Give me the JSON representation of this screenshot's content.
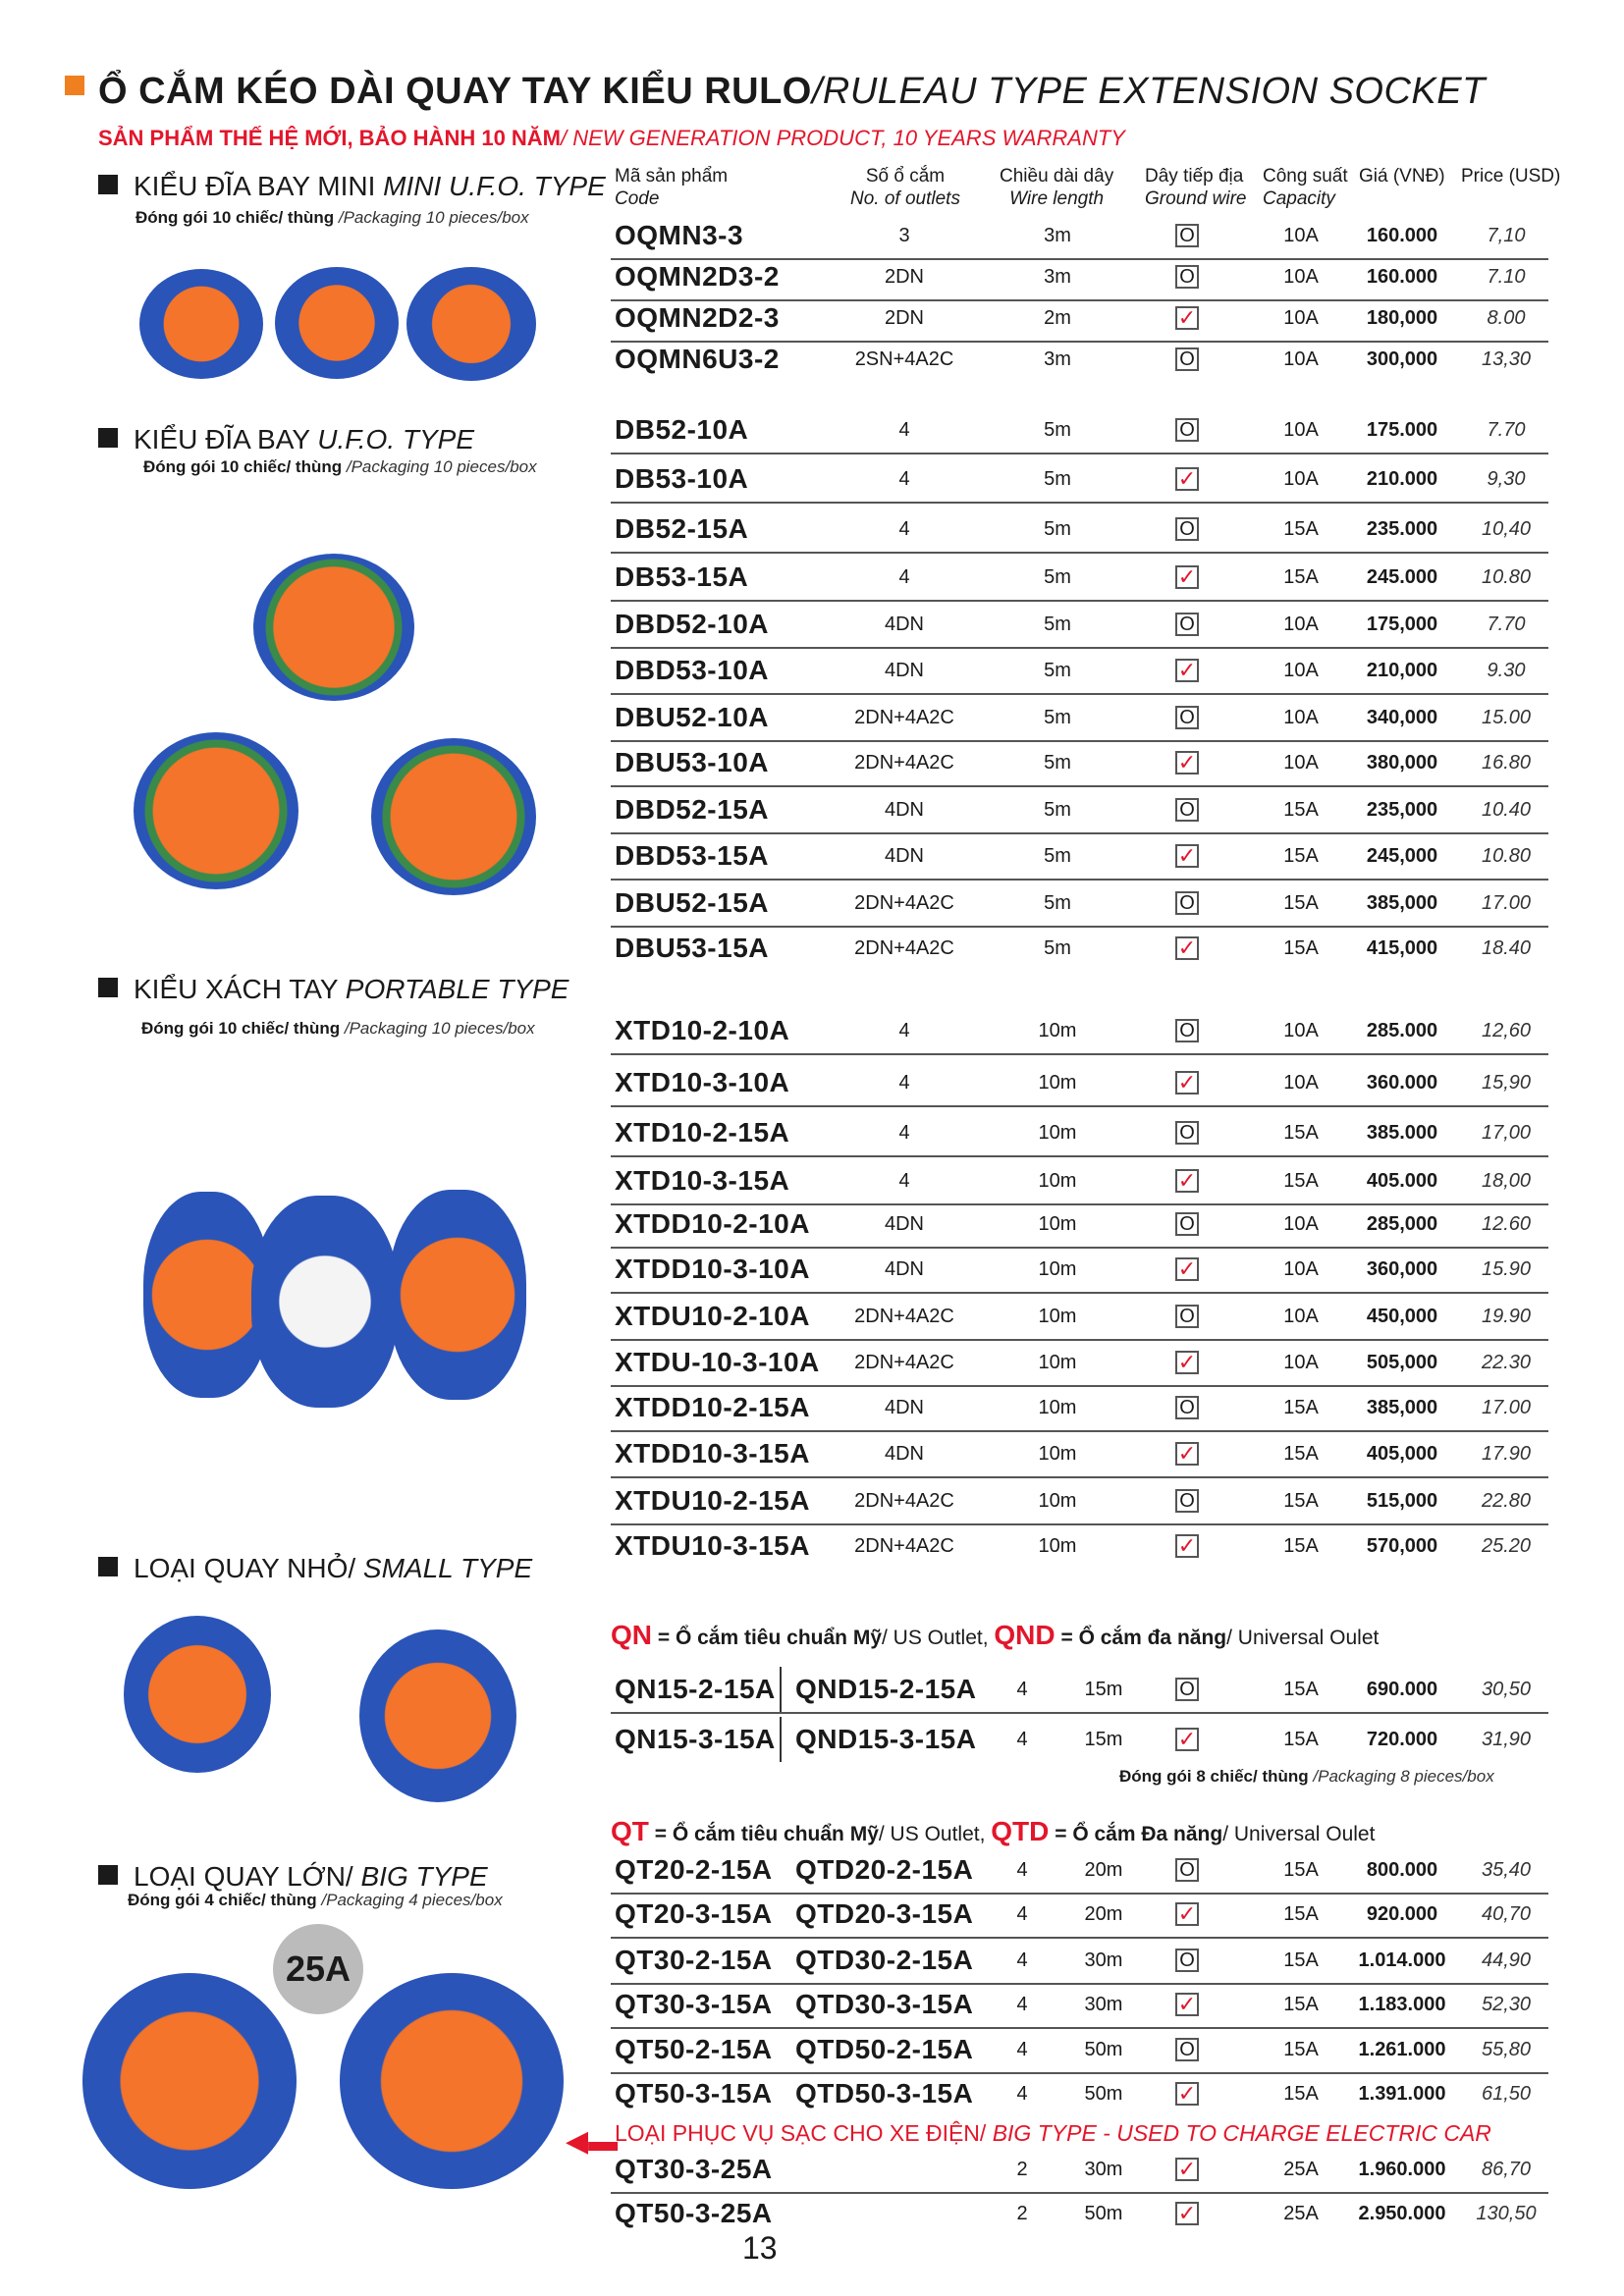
{
  "title": {
    "main": "Ổ CẮM KÉO DÀI QUAY TAY KIỂU RULO",
    "en": "/RULEAU TYPE EXTENSION SOCKET"
  },
  "subtitle": {
    "main": "SẢN PHẨM THẾ HỆ MỚI, BẢO HÀNH 10 NĂM",
    "en": "/ NEW GENERATION PRODUCT, 10 YEARS WARRANTY"
  },
  "colors": {
    "accent_orange": "#f07f1f",
    "accent_red": "#e3162b"
  },
  "headers": {
    "code": "Mã sản phẩm",
    "code_en": "Code",
    "outlets": "Số ổ cắm",
    "outlets_en": "No. of outlets",
    "length": "Chiều dài dây",
    "length_en": "Wire length",
    "ground": "Dây tiếp địa",
    "ground_en": "Ground wire",
    "capacity": "Công suất",
    "capacity_en": "Capacity",
    "vnd": "Giá (VNĐ)",
    "usd": "Price (USD)"
  },
  "sections": {
    "mini": {
      "vn": "KIỂU ĐĨA BAY MINI",
      "en": "MINI U.F.O. TYPE",
      "pack_vn": "Đóng gói 10 chiếc/ thùng",
      "pack_en": "/Packaging 10 pieces/box"
    },
    "ufo": {
      "vn": "KIỂU ĐĨA BAY",
      "en": "U.F.O. TYPE",
      "pack_vn": "Đóng gói 10 chiếc/ thùng",
      "pack_en": "/Packaging 10 pieces/box"
    },
    "portable": {
      "vn": "KIỂU XÁCH TAY",
      "en": "PORTABLE TYPE",
      "pack_vn": "Đóng gói 10 chiếc/ thùng",
      "pack_en": "/Packaging 10 pieces/box"
    },
    "small": {
      "vn": "LOẠI QUAY NHỎ/",
      "en": "SMALL TYPE"
    },
    "big": {
      "vn": "LOẠI QUAY LỚN/",
      "en": "BIG TYPE",
      "pack_vn": "Đóng gói 4 chiếc/ thùng",
      "pack_en": "/Packaging 4 pieces/box"
    }
  },
  "rows_single": [
    [
      "OQMN3-3",
      "3",
      "3m",
      "O",
      "10A",
      "160.000",
      "7,10"
    ],
    [
      "OQMN2D3-2",
      "2DN",
      "3m",
      "O",
      "10A",
      "160.000",
      "7.10"
    ],
    [
      "OQMN2D2-3",
      "2DN",
      "2m",
      "check",
      "10A",
      "180,000",
      "8.00"
    ],
    [
      "OQMN6U3-2",
      "2SN+4A2C",
      "3m",
      "O",
      "10A",
      "300,000",
      "13,30"
    ],
    [
      "DB52-10A",
      "4",
      "5m",
      "O",
      "10A",
      "175.000",
      "7.70"
    ],
    [
      "DB53-10A",
      "4",
      "5m",
      "check",
      "10A",
      "210.000",
      "9,30"
    ],
    [
      "DB52-15A",
      "4",
      "5m",
      "O",
      "15A",
      "235.000",
      "10,40"
    ],
    [
      "DB53-15A",
      "4",
      "5m",
      "check",
      "15A",
      "245.000",
      "10.80"
    ],
    [
      "DBD52-10A",
      "4DN",
      "5m",
      "O",
      "10A",
      "175,000",
      "7.70"
    ],
    [
      "DBD53-10A",
      "4DN",
      "5m",
      "check",
      "10A",
      "210,000",
      "9.30"
    ],
    [
      "DBU52-10A",
      "2DN+4A2C",
      "5m",
      "O",
      "10A",
      "340,000",
      "15.00"
    ],
    [
      "DBU53-10A",
      "2DN+4A2C",
      "5m",
      "check",
      "10A",
      "380,000",
      "16.80"
    ],
    [
      "DBD52-15A",
      "4DN",
      "5m",
      "O",
      "15A",
      "235,000",
      "10.40"
    ],
    [
      "DBD53-15A",
      "4DN",
      "5m",
      "check",
      "15A",
      "245,000",
      "10.80"
    ],
    [
      "DBU52-15A",
      "2DN+4A2C",
      "5m",
      "O",
      "15A",
      "385,000",
      "17.00"
    ],
    [
      "DBU53-15A",
      "2DN+4A2C",
      "5m",
      "check",
      "15A",
      "415,000",
      "18.40"
    ],
    [
      "XTD10-2-10A",
      "4",
      "10m",
      "O",
      "10A",
      "285.000",
      "12,60"
    ],
    [
      "XTD10-3-10A",
      "4",
      "10m",
      "check",
      "10A",
      "360.000",
      "15,90"
    ],
    [
      "XTD10-2-15A",
      "4",
      "10m",
      "O",
      "15A",
      "385.000",
      "17,00"
    ],
    [
      "XTD10-3-15A",
      "4",
      "10m",
      "check",
      "15A",
      "405.000",
      "18,00"
    ],
    [
      "XTDD10-2-10A",
      "4DN",
      "10m",
      "O",
      "10A",
      "285,000",
      "12.60"
    ],
    [
      "XTDD10-3-10A",
      "4DN",
      "10m",
      "check",
      "10A",
      "360,000",
      "15.90"
    ],
    [
      "XTDU10-2-10A",
      "2DN+4A2C",
      "10m",
      "O",
      "10A",
      "450,000",
      "19.90"
    ],
    [
      "XTDU-10-3-10A",
      "2DN+4A2C",
      "10m",
      "check",
      "10A",
      "505,000",
      "22.30"
    ],
    [
      "XTDD10-2-15A",
      "4DN",
      "10m",
      "O",
      "15A",
      "385,000",
      "17.00"
    ],
    [
      "XTDD10-3-15A",
      "4DN",
      "10m",
      "check",
      "15A",
      "405,000",
      "17.90"
    ],
    [
      "XTDU10-2-15A",
      "2DN+4A2C",
      "10m",
      "O",
      "15A",
      "515,000",
      "22.80"
    ],
    [
      "XTDU10-3-15A",
      "2DN+4A2C",
      "10m",
      "check",
      "15A",
      "570,000",
      "25.20"
    ]
  ],
  "qn_legend": {
    "qn": "QN",
    "qn_text": "= Ổ cắm tiêu chuẩn Mỹ",
    "qn_en": "/ US Outlet,",
    "qnd": "QND",
    "qnd_text": "= Ổ cắm đa năng",
    "qnd_en": "/ Universal Oulet"
  },
  "qn_pack": {
    "vn": "Đóng gói 8 chiếc/ thùng",
    "en": "/Packaging 8 pieces/box"
  },
  "qt_legend": {
    "qn": "QT",
    "qn_text": "= Ổ cắm tiêu chuẩn Mỹ",
    "qn_en": "/ US Outlet,",
    "qnd": "QTD",
    "qnd_text": "= Ổ cắm Đa năng",
    "qnd_en": "/ Universal Oulet"
  },
  "rows_double": [
    [
      "QN15-2-15A",
      "QND15-2-15A",
      "4",
      "15m",
      "O",
      "15A",
      "690.000",
      "30,50"
    ],
    [
      "QN15-3-15A",
      "QND15-3-15A",
      "4",
      "15m",
      "check",
      "15A",
      "720.000",
      "31,90"
    ],
    [
      "QT20-2-15A",
      "QTD20-2-15A",
      "4",
      "20m",
      "O",
      "15A",
      "800.000",
      "35,40"
    ],
    [
      "QT20-3-15A",
      "QTD20-3-15A",
      "4",
      "20m",
      "check",
      "15A",
      "920.000",
      "40,70"
    ],
    [
      "QT30-2-15A",
      "QTD30-2-15A",
      "4",
      "30m",
      "O",
      "15A",
      "1.014.000",
      "44,90"
    ],
    [
      "QT30-3-15A",
      "QTD30-3-15A",
      "4",
      "30m",
      "check",
      "15A",
      "1.183.000",
      "52,30"
    ],
    [
      "QT50-2-15A",
      "QTD50-2-15A",
      "4",
      "50m",
      "O",
      "15A",
      "1.261.000",
      "55,80"
    ],
    [
      "QT50-3-15A",
      "QTD50-3-15A",
      "4",
      "50m",
      "check",
      "15A",
      "1.391.000",
      "61,50"
    ]
  ],
  "ev": {
    "vn": "LOẠI PHỤC VỤ SẠC CHO XE ĐIỆN/",
    "en": " BIG TYPE - USED TO CHARGE ELECTRIC CAR"
  },
  "rows_ev": [
    [
      "QT30-3-25A",
      "2",
      "30m",
      "check",
      "25A",
      "1.960.000",
      "86,70"
    ],
    [
      "QT50-3-25A",
      "2",
      "50m",
      "check",
      "25A",
      "2.950.000",
      "130,50"
    ]
  ],
  "badge": "25A",
  "page_number": "13"
}
